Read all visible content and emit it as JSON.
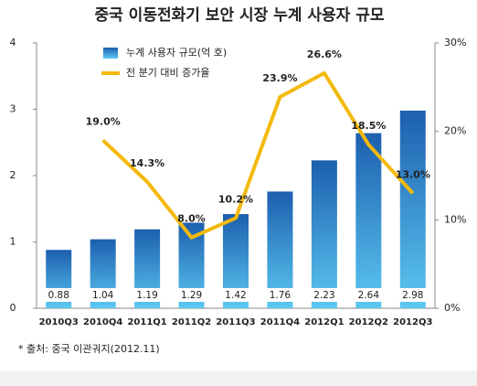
{
  "chart_data": {
    "type": "bar",
    "title": "중국 이동전화기 보안 시장 누계 사용자 규모",
    "categories": [
      "2010Q3",
      "2010Q4",
      "2011Q1",
      "2011Q2",
      "2011Q3",
      "2011Q4",
      "2012Q1",
      "2012Q2",
      "2012Q3"
    ],
    "series": [
      {
        "name": "누계 사용자 규모(억 호)",
        "color": "#2a78c8",
        "values": [
          0.88,
          1.04,
          1.19,
          1.29,
          1.42,
          1.76,
          2.23,
          2.64,
          2.98
        ]
      },
      {
        "name": "전 분기 대비 증가율",
        "color": "#f4b90c",
        "type": "line",
        "axis": "y2",
        "values": [
          null,
          19.0,
          14.3,
          8.0,
          10.2,
          23.9,
          26.6,
          18.5,
          13.0
        ],
        "value_labels": [
          null,
          "19.0%",
          "14.3%",
          "8.0%",
          "10.2%",
          "23.9%",
          "26.6%",
          "18.5%",
          "13.0%"
        ]
      }
    ],
    "ylim": [
      0,
      4
    ],
    "yticks": [
      0,
      1,
      2,
      3,
      4
    ],
    "y2lim": [
      0,
      30
    ],
    "y2ticks": [
      {
        "value": 0,
        "label": "0%"
      },
      {
        "value": 10,
        "label": "10%"
      },
      {
        "value": 20,
        "label": "20%"
      },
      {
        "value": 30,
        "label": "30%"
      }
    ],
    "source": "* 출처: 중국 이관궈지(2012.11)"
  }
}
